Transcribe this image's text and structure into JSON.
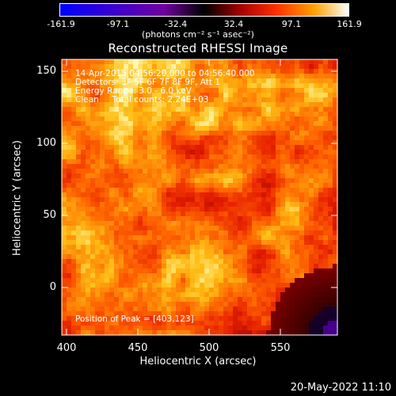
{
  "colorbar": {
    "ticks": [
      "-161.9",
      "-97.1",
      "-32.4",
      "32.4",
      "97.1",
      "161.9"
    ],
    "units": "(photons cm⁻² s⁻¹ asec⁻²)",
    "range": [
      -161.9,
      161.9
    ]
  },
  "chart_data": {
    "type": "heatmap",
    "title": "Reconstructed RHESSI Image",
    "xlabel": "Heliocentric X (arcsec)",
    "ylabel": "Heliocentric Y (arcsec)",
    "xlim": [
      397,
      590
    ],
    "ylim": [
      -33,
      158
    ],
    "xticks": [
      "400",
      "450",
      "500",
      "550"
    ],
    "yticks": [
      "150",
      "100",
      "50",
      "0"
    ],
    "colormap": "RHESSI red-yellow (blue negative)",
    "peak": [
      403,
      123
    ]
  },
  "annotations": {
    "time": "14-Apr-2015 04:56:20.000 to 04:56:40.000",
    "detectors": "Detectors: 3F 5F 6F 7F 8F 9F, Att 1",
    "energy": "Energy Range: 3.0 - 6.0 keV",
    "clean": "Clean     Total counts: 2.24E+03",
    "peak_label": "Position of Peak = [403,123]"
  },
  "timestamp": "20-May-2022 11:10"
}
